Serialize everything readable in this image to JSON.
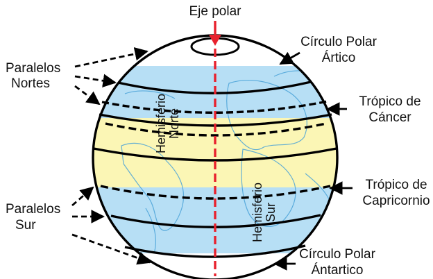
{
  "diagram": {
    "axis_label": "Eje polar",
    "left_labels": {
      "north": [
        "Paralelos",
        "Nortes"
      ],
      "south": [
        "Paralelos",
        "Sur"
      ]
    },
    "right_labels": {
      "arctic": [
        "Círculo Polar",
        "Ártico"
      ],
      "cancer": [
        "Trópico de",
        "Cáncer"
      ],
      "capricorn": [
        "Trópico de",
        "Capricornio"
      ],
      "antarctic": [
        "Círculo Polar",
        "Ántartico"
      ]
    },
    "hemispheres": {
      "north": [
        "Hemisferio",
        "Norte"
      ],
      "south": [
        "Hemisferio",
        "Sur"
      ]
    },
    "colors": {
      "polar_zone": "#ffffff",
      "temperate_zone": "#b7dff5",
      "tropical_zone": "#fbf6b5",
      "axis": "#e8212d",
      "outline": "#000000",
      "landmass": "#4aa3d8"
    }
  }
}
